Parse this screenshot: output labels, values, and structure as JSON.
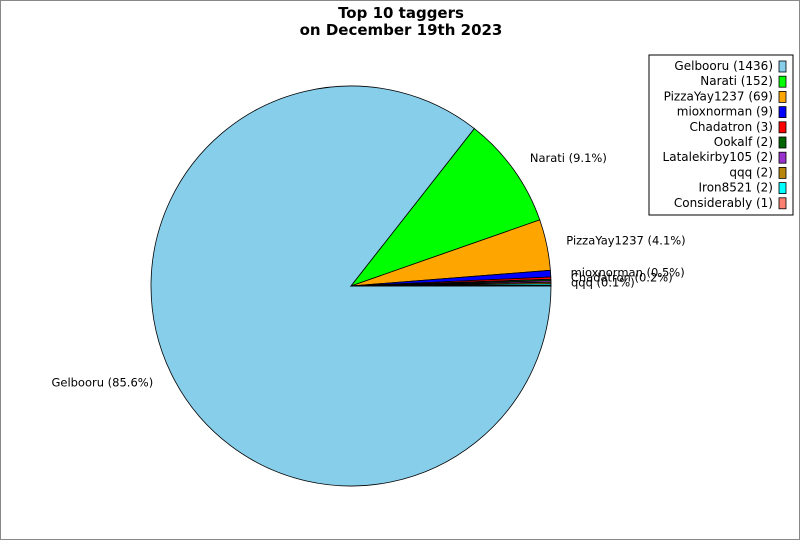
{
  "chart_data": {
    "type": "pie",
    "title_line1": "Top 10 taggers",
    "title_line2": "on December 19th 2023",
    "legend_position": "top-right",
    "start_angle_deg": 0,
    "direction": "clockwise",
    "slices": [
      {
        "name": "Gelbooru",
        "value": 1436,
        "legend": "Gelbooru (1436)",
        "label": "Gelbooru (85.6%)",
        "color": "#87ceeb"
      },
      {
        "name": "Narati",
        "value": 152,
        "legend": "Narati (152)",
        "label": "Narati (9.1%)",
        "color": "#00ff00"
      },
      {
        "name": "PizzaYay1237",
        "value": 69,
        "legend": "PizzaYay1237 (69)",
        "label": "PizzaYay1237 (4.1%)",
        "color": "#ffa500"
      },
      {
        "name": "mioxnorman",
        "value": 9,
        "legend": "mioxnorman (9)",
        "label": "mioxnorman (0.5%)",
        "color": "#0000ff"
      },
      {
        "name": "Chadatron",
        "value": 3,
        "legend": "Chadatron (3)",
        "label": "Chadatron (0.2%)",
        "color": "#ff0000"
      },
      {
        "name": "Ookalf",
        "value": 2,
        "legend": "Ookalf (2)",
        "label": "",
        "color": "#006400"
      },
      {
        "name": "Latalekirby105",
        "value": 2,
        "legend": "Latalekirby105 (2)",
        "label": "",
        "color": "#9932cc"
      },
      {
        "name": "qqq",
        "value": 2,
        "legend": "qqq (2)",
        "label": "qqq (0.1%)",
        "color": "#b8860b"
      },
      {
        "name": "Iron8521",
        "value": 2,
        "legend": "Iron8521 (2)",
        "label": "",
        "color": "#00ffff"
      },
      {
        "name": "Considerably",
        "value": 1,
        "legend": "Considerably (1)",
        "label": "",
        "color": "#fa8072"
      }
    ]
  }
}
